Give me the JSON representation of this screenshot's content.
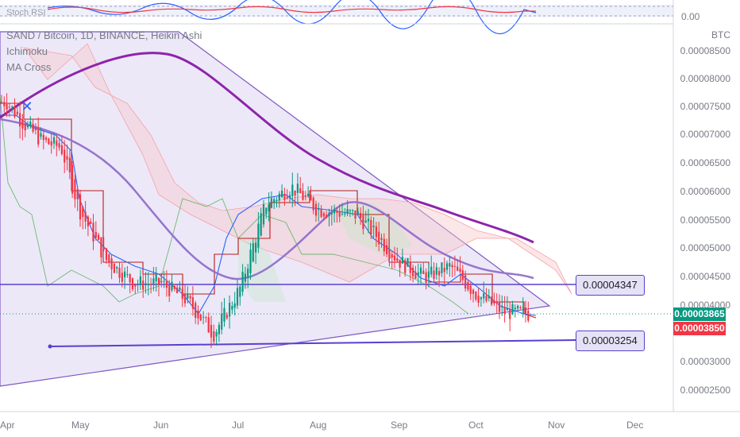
{
  "header": {
    "symbol_line": "SAND / Bitcoin, 1D, BINANCE, Heikin Ashi",
    "indicators": [
      "Ichimoku",
      "MA Cross"
    ],
    "stoch_label": "Stoch RSI",
    "stoch_axis_value": "0.00"
  },
  "price_axis": {
    "unit": "BTC",
    "ticks": [
      "0.00008500",
      "0.00008000",
      "0.00007500",
      "0.00007000",
      "0.00006500",
      "0.00006000",
      "0.00005500",
      "0.00005000",
      "0.00004500",
      "0.00004000",
      "0.00003500",
      "0.00003000",
      "0.00002500"
    ]
  },
  "time_axis": {
    "labels": [
      "Apr",
      "May",
      "Jun",
      "Jul",
      "Aug",
      "Sep",
      "Oct",
      "Nov",
      "Dec"
    ]
  },
  "price_tags": [
    {
      "value": "0.00003865",
      "color": "#089981"
    },
    {
      "value": "0.00003850",
      "color": "#f23645"
    }
  ],
  "line_labels": {
    "resistance": "0.00004347",
    "support": "0.00003254"
  },
  "colors": {
    "up": "#089981",
    "down": "#f23645",
    "ma_long": "#8e24aa",
    "ma_short": "#9575cd",
    "triangle_fill": "#e6e0f5",
    "drawn_line": "#5b3fcf"
  },
  "chart_data": {
    "type": "candlestick",
    "title": "SAND / Bitcoin, 1D, BINANCE, Heikin Ashi",
    "ylim": [
      2.2e-05,
      8.9e-05
    ],
    "y_unit": "BTC",
    "x_months": [
      "Apr",
      "May",
      "Jun",
      "Jul",
      "Aug",
      "Sep",
      "Oct",
      "Nov",
      "Dec"
    ],
    "close_path": [
      [
        "Apr",
        7.6e-05
      ],
      [
        "Apr",
        7.2e-05
      ],
      [
        "Apr",
        6.9e-05
      ],
      [
        "Apr",
        6.8e-05
      ],
      [
        "May",
        5.7e-05
      ],
      [
        "May",
        4.8e-05
      ],
      [
        "May",
        4.4e-05
      ],
      [
        "Jun",
        4.4e-05
      ],
      [
        "Jun",
        4.1e-05
      ],
      [
        "Jun",
        3.5e-05
      ],
      [
        "Jul",
        4.3e-05
      ],
      [
        "Jul",
        5.8e-05
      ],
      [
        "Jul",
        6.1e-05
      ],
      [
        "Aug",
        5.7e-05
      ],
      [
        "Aug",
        5.6e-05
      ],
      [
        "Sep",
        4.8e-05
      ],
      [
        "Sep",
        4.5e-05
      ],
      [
        "Sep",
        4.7e-05
      ],
      [
        "Oct",
        4.2e-05
      ],
      [
        "Oct",
        3.9e-05
      ],
      [
        "Oct",
        3.86e-05
      ]
    ],
    "series": [
      {
        "name": "Ichimoku",
        "kind": "cloud"
      },
      {
        "name": "MA Cross",
        "kind": "moving-averages"
      }
    ],
    "levels": [
      4.347e-05,
      3.254e-05
    ],
    "last_price": 3.865e-05,
    "grid": false,
    "legend": "top-left"
  }
}
